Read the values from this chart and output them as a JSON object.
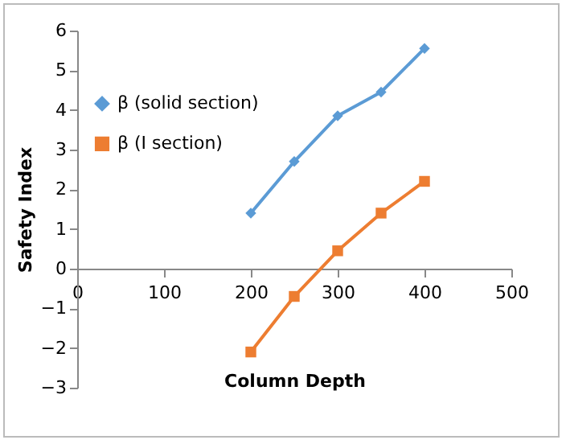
{
  "chart_data": {
    "type": "line",
    "xlabel": "Column Depth",
    "ylabel": "Safety Index",
    "x": [
      200,
      250,
      300,
      350,
      400
    ],
    "series": [
      {
        "name": "β (solid section)",
        "color": "#5b9bd5",
        "marker": "diamond",
        "values": [
          1.4,
          2.7,
          3.85,
          4.45,
          5.55
        ]
      },
      {
        "name": "β (I section)",
        "color": "#ed7d31",
        "marker": "square",
        "values": [
          -2.1,
          -0.7,
          0.45,
          1.4,
          2.2
        ]
      }
    ],
    "xlim": [
      0,
      500
    ],
    "xticks": [
      0,
      100,
      200,
      300,
      400,
      500
    ],
    "ylim": [
      -3,
      6
    ],
    "yticks": [
      -3,
      -2,
      -1,
      0,
      1,
      2,
      3,
      4,
      5,
      6
    ],
    "grid": false,
    "legend": "top left",
    "line_style": "solid"
  }
}
